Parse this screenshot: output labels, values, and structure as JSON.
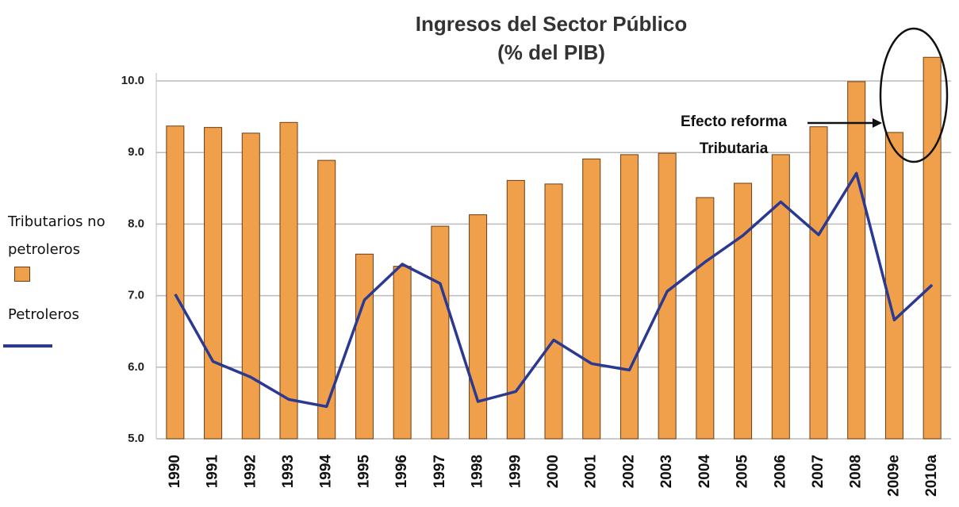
{
  "chart_data": {
    "type": "bar",
    "title": "Ingresos del Sector Público",
    "subtitle": "(% del PIB)",
    "categories": [
      "1990",
      "1991",
      "1992",
      "1993",
      "1994",
      "1995",
      "1996",
      "1997",
      "1998",
      "1999",
      "2000",
      "2001",
      "2002",
      "2003",
      "2004",
      "2005",
      "2006",
      "2007",
      "2008",
      "2009e",
      "2010a"
    ],
    "series": [
      {
        "name": "Tributarios no petroleros",
        "type": "bar",
        "color": "#f0a04b",
        "values": [
          9.37,
          9.35,
          9.27,
          9.42,
          8.89,
          7.58,
          7.41,
          7.97,
          8.13,
          8.61,
          8.56,
          8.91,
          8.97,
          8.99,
          8.37,
          8.57,
          8.97,
          9.36,
          9.99,
          9.28,
          10.33
        ]
      },
      {
        "name": "Petroleros",
        "type": "line",
        "color": "#2b3990",
        "values": [
          7.02,
          6.08,
          5.86,
          5.55,
          5.45,
          6.94,
          7.44,
          7.17,
          5.52,
          5.66,
          6.38,
          6.05,
          5.96,
          7.06,
          7.47,
          7.84,
          8.31,
          7.85,
          8.71,
          6.66,
          7.15
        ]
      }
    ],
    "ylim": [
      5,
      10.5
    ],
    "yticks": [
      {
        "value": 5,
        "label": "5.0"
      },
      {
        "value": 6,
        "label": "6.0"
      },
      {
        "value": 7,
        "label": "7.0"
      },
      {
        "value": 8,
        "label": "8.0"
      },
      {
        "value": 9,
        "label": "9.0"
      },
      {
        "value": 10,
        "label": "10.0"
      }
    ],
    "grid": true,
    "annotation": [
      "Efecto reforma",
      "Tributaria"
    ]
  }
}
